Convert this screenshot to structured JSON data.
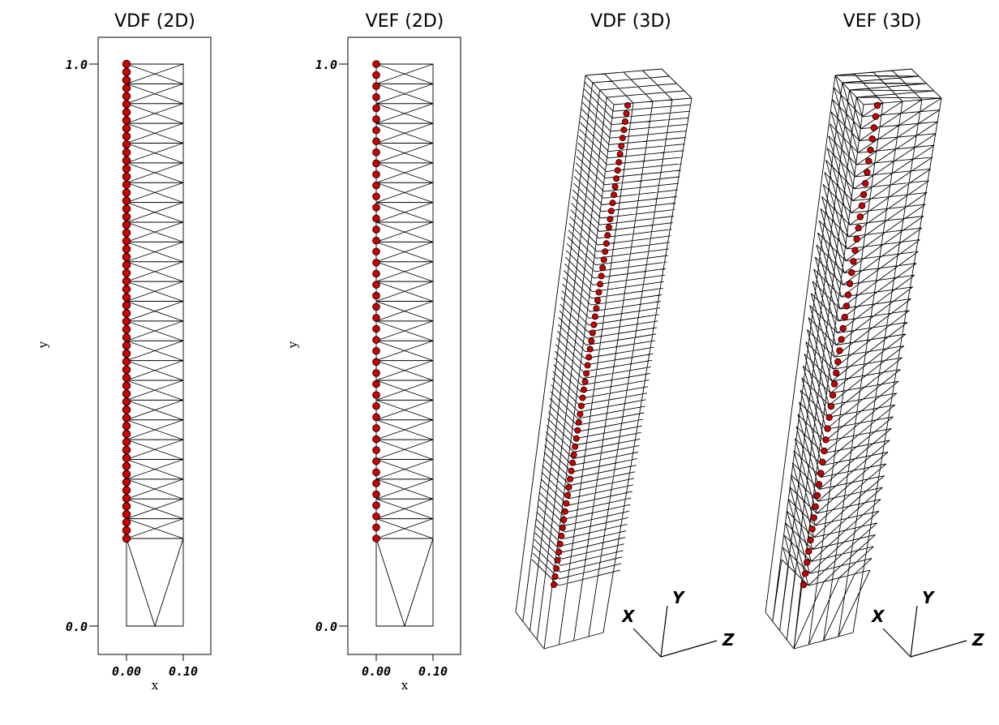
{
  "panels": [
    {
      "title": "VDF (2D)",
      "y_tick_top": "1.0",
      "y_tick_bottom": "0.0",
      "x_tick_left": "0.00",
      "x_tick_right": "0.10",
      "xlabel": "x",
      "ylabel": "y",
      "points": 60
    },
    {
      "title": "VEF (2D)",
      "y_tick_top": "1.0",
      "y_tick_bottom": "0.0",
      "x_tick_left": "0.00",
      "x_tick_right": "0.10",
      "xlabel": "x",
      "ylabel": "y",
      "points": 44
    },
    {
      "title": "VDF (3D)",
      "axis_x": "X",
      "axis_y": "Y",
      "axis_z": "Z",
      "points": 60
    },
    {
      "title": "VEF (3D)",
      "axis_x": "X",
      "axis_y": "Y",
      "axis_z": "Z",
      "points": 44
    }
  ],
  "colors": {
    "marker": "#cc0000",
    "mesh": "#000000",
    "background": "#ffffff"
  }
}
